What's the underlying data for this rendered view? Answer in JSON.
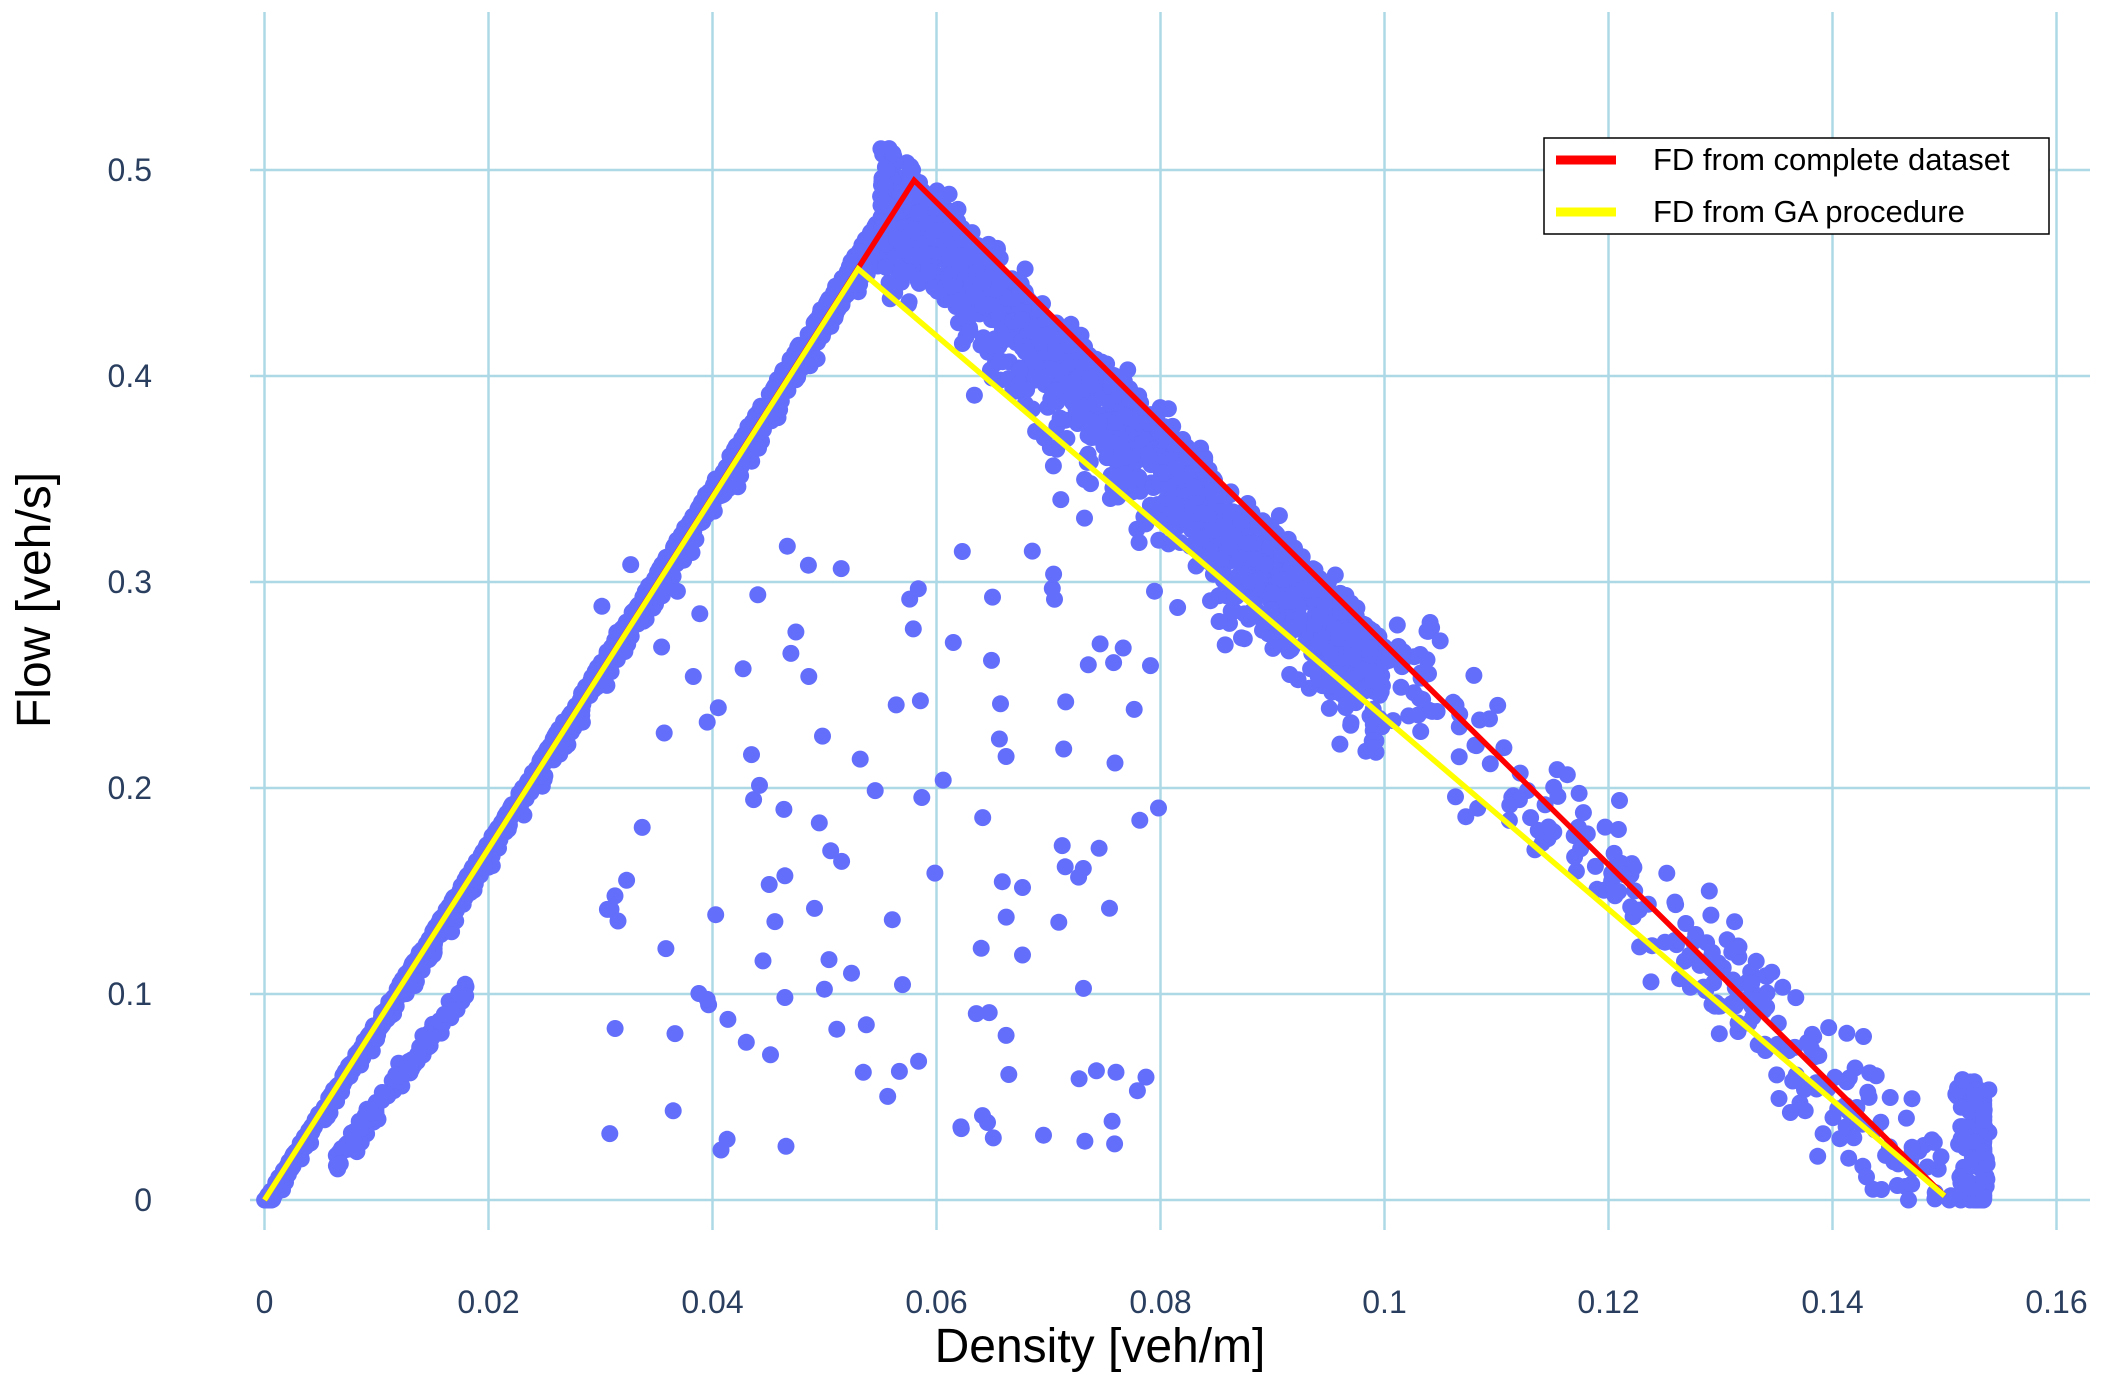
{
  "chart_data": {
    "type": "scatter",
    "xlabel": "Density [veh/m]",
    "ylabel": "Flow [veh/s]",
    "xlim": [
      -0.01,
      0.161
    ],
    "ylim": [
      -0.036,
      0.578
    ],
    "x_ticks": [
      0,
      0.02,
      0.04,
      0.06,
      0.08,
      0.1,
      0.12,
      0.14,
      0.16
    ],
    "x_tick_labels": [
      "0",
      "0.02",
      "0.04",
      "0.06",
      "0.08",
      "0.1",
      "0.12",
      "0.14",
      "0.16"
    ],
    "y_ticks": [
      0,
      0.1,
      0.2,
      0.3,
      0.4,
      0.5
    ],
    "y_tick_labels": [
      "0",
      "0.1",
      "0.2",
      "0.3",
      "0.4",
      "0.5"
    ],
    "grid": true,
    "legend_position": "top-right",
    "colors": {
      "grid": "#add8e6",
      "points": "#636efa",
      "fd_complete": "#ff0000",
      "fd_ga": "#ffff00",
      "tick_text": "#2a3f5f",
      "axis_title": "#000000"
    },
    "series": [
      {
        "name": "",
        "kind": "scatter",
        "description_points": "observed density-flow measurements",
        "points": [
          [
            0.0,
            0.0
          ],
          [
            0.001,
            0.004
          ],
          [
            0.002,
            0.008
          ],
          [
            0.003,
            0.013
          ],
          [
            0.004,
            0.019
          ],
          [
            0.005,
            0.025
          ],
          [
            0.006,
            0.03
          ],
          [
            0.007,
            0.037
          ],
          [
            0.008,
            0.044
          ],
          [
            0.009,
            0.052
          ],
          [
            0.01,
            0.058
          ],
          [
            0.011,
            0.066
          ],
          [
            0.012,
            0.073
          ],
          [
            0.013,
            0.081
          ],
          [
            0.014,
            0.088
          ],
          [
            0.015,
            0.095
          ],
          [
            0.016,
            0.103
          ],
          [
            0.017,
            0.111
          ],
          [
            0.018,
            0.118
          ],
          [
            0.019,
            0.126
          ],
          [
            0.02,
            0.133
          ],
          [
            0.021,
            0.141
          ],
          [
            0.022,
            0.149
          ],
          [
            0.023,
            0.157
          ],
          [
            0.024,
            0.165
          ],
          [
            0.025,
            0.173
          ],
          [
            0.026,
            0.181
          ],
          [
            0.027,
            0.189
          ],
          [
            0.028,
            0.197
          ],
          [
            0.029,
            0.205
          ],
          [
            0.03,
            0.213
          ],
          [
            0.031,
            0.221
          ],
          [
            0.032,
            0.229
          ],
          [
            0.033,
            0.238
          ],
          [
            0.034,
            0.246
          ],
          [
            0.035,
            0.254
          ],
          [
            0.036,
            0.263
          ],
          [
            0.037,
            0.271
          ],
          [
            0.038,
            0.28
          ],
          [
            0.039,
            0.288
          ],
          [
            0.04,
            0.297
          ],
          [
            0.041,
            0.306
          ],
          [
            0.042,
            0.315
          ],
          [
            0.043,
            0.323
          ],
          [
            0.044,
            0.332
          ],
          [
            0.045,
            0.341
          ],
          [
            0.046,
            0.35
          ],
          [
            0.047,
            0.359
          ],
          [
            0.048,
            0.368
          ],
          [
            0.049,
            0.377
          ],
          [
            0.05,
            0.386
          ],
          [
            0.051,
            0.396
          ],
          [
            0.052,
            0.405
          ],
          [
            0.053,
            0.414
          ],
          [
            0.054,
            0.424
          ],
          [
            0.055,
            0.433
          ],
          [
            0.056,
            0.443
          ],
          [
            0.057,
            0.452
          ],
          [
            0.058,
            0.462
          ]
        ]
      },
      {
        "name": "FD from complete dataset",
        "kind": "line",
        "points": [
          [
            0.0,
            0.0
          ],
          [
            0.058,
            0.495
          ],
          [
            0.15,
            0.002
          ]
        ]
      },
      {
        "name": "FD from GA procedure",
        "kind": "line",
        "points": [
          [
            0.0,
            0.0
          ],
          [
            0.053,
            0.452
          ],
          [
            0.15,
            0.002
          ]
        ]
      }
    ]
  }
}
